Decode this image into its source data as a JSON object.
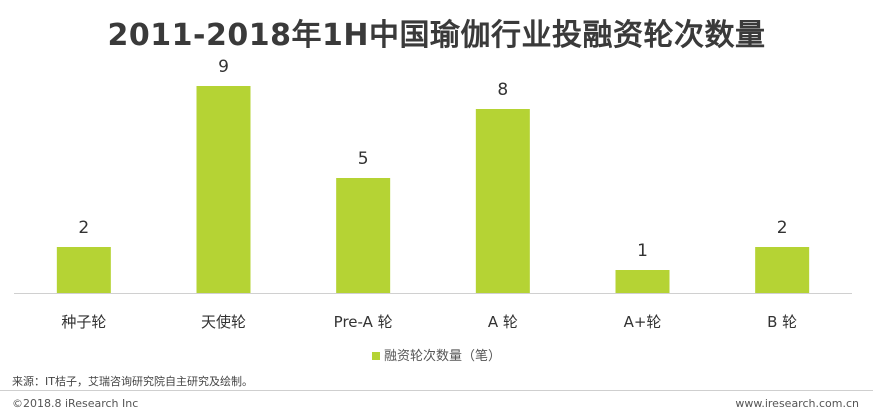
{
  "title": "2011-2018年1H中国瑜伽行业投融资轮次数量",
  "chart_data": {
    "type": "bar",
    "title": "2011-2018年1H中国瑜伽行业投融资轮次数量",
    "categories": [
      "种子轮",
      "天使轮",
      "Pre-A 轮",
      "A 轮",
      "A+轮",
      "B 轮"
    ],
    "series": [
      {
        "name": "融资轮次数量（笔）",
        "values": [
          2,
          9,
          5,
          8,
          1,
          2
        ]
      }
    ],
    "ylim": [
      0,
      9
    ],
    "grid": false,
    "legend": "bottom-center",
    "bar_color": "#b5d334"
  },
  "legend": {
    "label": "融资轮次数量（笔）"
  },
  "source": "来源：IT桔子，艾瑞咨询研究院自主研究及绘制。",
  "copyright": "©2018.8 iResearch Inc",
  "website": "www.iresearch.com.cn"
}
